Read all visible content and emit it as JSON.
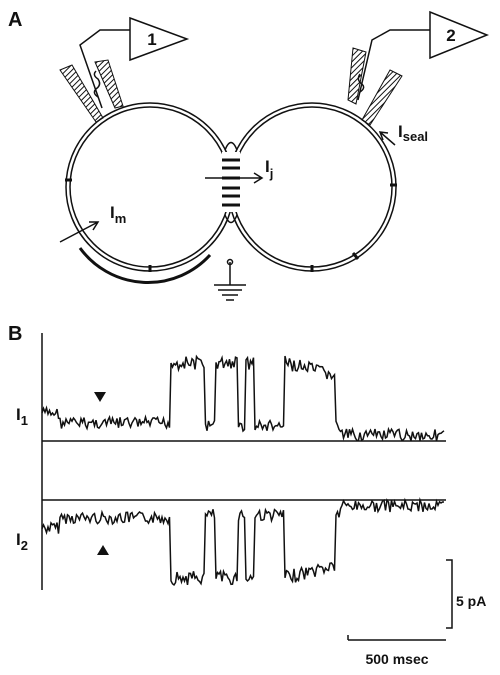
{
  "panel_a": {
    "label": "A",
    "amplifiers": [
      "1",
      "2"
    ],
    "currents": [
      {
        "symbol": "I",
        "sub": "seal"
      },
      {
        "symbol": "I",
        "sub": "j"
      },
      {
        "symbol": "I",
        "sub": "m"
      }
    ]
  },
  "panel_b": {
    "label": "B",
    "traces": [
      {
        "symbol": "I",
        "sub": "1"
      },
      {
        "symbol": "I",
        "sub": "2"
      }
    ],
    "scale_bars": {
      "current": "5 pA",
      "time": "500 msec"
    }
  }
}
